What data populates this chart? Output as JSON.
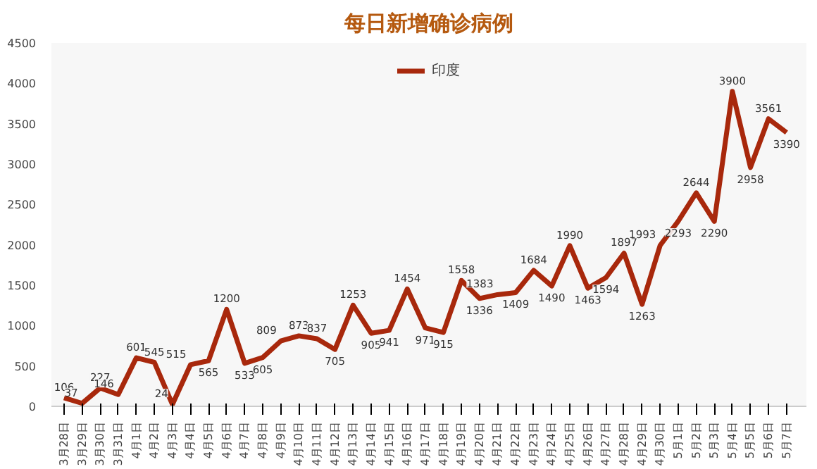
{
  "chart_data": {
    "type": "line",
    "title": "每日新增确诊病例",
    "categories": [
      "3月28日",
      "3月29日",
      "3月30日",
      "3月31日",
      "4月1日",
      "4月2日",
      "4月3日",
      "4月4日",
      "4月5日",
      "4月6日",
      "4月7日",
      "4月8日",
      "4月9日",
      "4月10日",
      "4月11日",
      "4月12日",
      "4月13日",
      "4月14日",
      "4月15日",
      "4月16日",
      "4月17日",
      "4月18日",
      "4月19日",
      "4月20日",
      "4月21日",
      "4月22日",
      "4月23日",
      "4月24日",
      "4月25日",
      "4月26日",
      "4月27日",
      "4月28日",
      "4月29日",
      "4月30日",
      "5月1日",
      "5月2日",
      "5月3日",
      "5月4日",
      "5月5日",
      "5月6日",
      "5月7日"
    ],
    "series": [
      {
        "name": "印度",
        "color": "#a8280c",
        "values": [
          106,
          37,
          227,
          146,
          601,
          545,
          24,
          515,
          565,
          1200,
          533,
          605,
          809,
          873,
          837,
          705,
          1253,
          905,
          941,
          1454,
          971,
          915,
          1558,
          1336,
          1383,
          1409,
          1684,
          1490,
          1990,
          1463,
          1594,
          1897,
          1263,
          1993,
          2293,
          2644,
          2290,
          3900,
          2958,
          3561,
          3390
        ]
      }
    ],
    "ylim": [
      0,
      4500
    ],
    "yticks": [
      0,
      500,
      1000,
      1500,
      2000,
      2500,
      3000,
      3500,
      4000,
      4500
    ],
    "data_labels": true,
    "legend": "top",
    "grid": false,
    "marker": "none",
    "line_style": "solid"
  }
}
